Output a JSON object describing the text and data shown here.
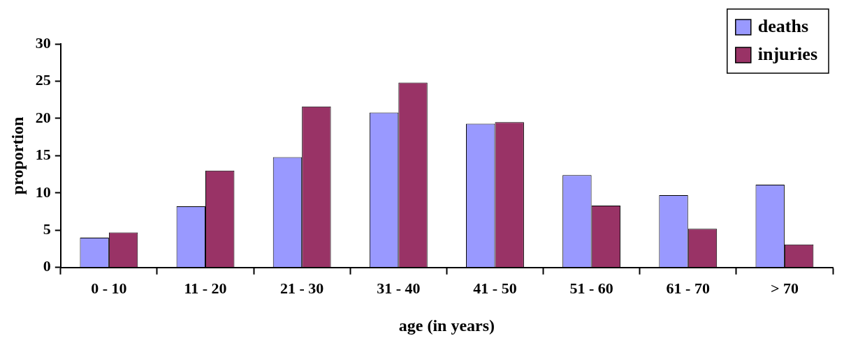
{
  "chart_data": {
    "type": "bar",
    "xlabel": "age (in years)",
    "ylabel": "proportion",
    "categories": [
      "0 - 10",
      "11 - 20",
      "21 - 30",
      "31 - 40",
      "41 - 50",
      "51 - 60",
      "61 - 70",
      "> 70"
    ],
    "series": [
      {
        "name": "deaths",
        "color": "#9999ff",
        "values": [
          4.0,
          8.2,
          14.8,
          20.8,
          19.3,
          12.4,
          9.7,
          11.1
        ]
      },
      {
        "name": "injuries",
        "color": "#993366",
        "values": [
          4.7,
          13.0,
          21.6,
          24.8,
          19.5,
          8.3,
          5.2,
          3.1
        ]
      }
    ],
    "ylim": [
      0,
      30
    ],
    "yticks": [
      0,
      5,
      10,
      15,
      20,
      25,
      30
    ],
    "grid": false,
    "legend": "top right"
  }
}
